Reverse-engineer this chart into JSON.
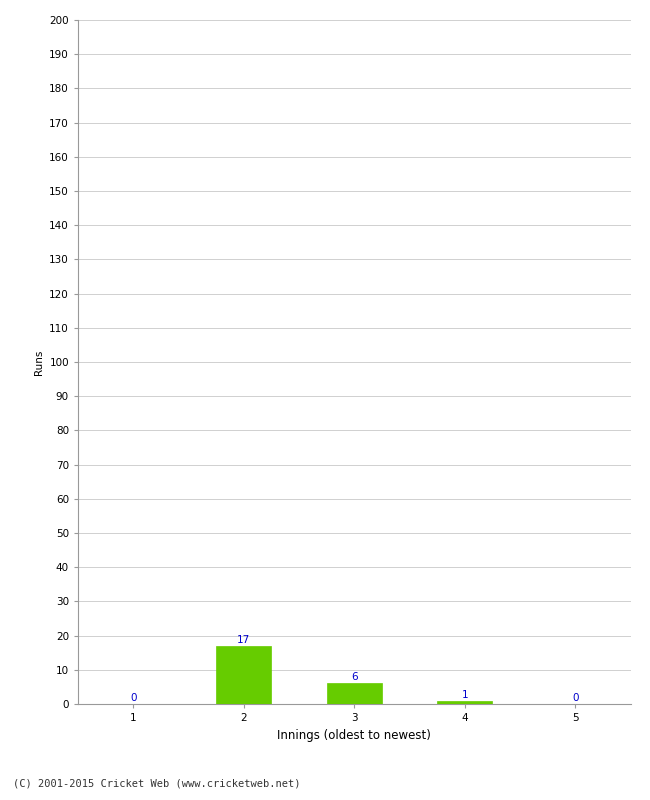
{
  "categories": [
    1,
    2,
    3,
    4,
    5
  ],
  "values": [
    0,
    17,
    6,
    1,
    0
  ],
  "bar_color": "#66cc00",
  "bar_edge_color": "#66cc00",
  "ylabel": "Runs",
  "xlabel": "Innings (oldest to newest)",
  "ylim": [
    0,
    200
  ],
  "ytick_step": 10,
  "annotation_color": "#0000cc",
  "annotation_fontsize": 7.5,
  "xlabel_fontsize": 8.5,
  "ylabel_fontsize": 7.5,
  "tick_fontsize": 7.5,
  "footer_text": "(C) 2001-2015 Cricket Web (www.cricketweb.net)",
  "footer_fontsize": 7.5,
  "background_color": "#ffffff",
  "grid_color": "#d0d0d0",
  "spine_color": "#999999"
}
